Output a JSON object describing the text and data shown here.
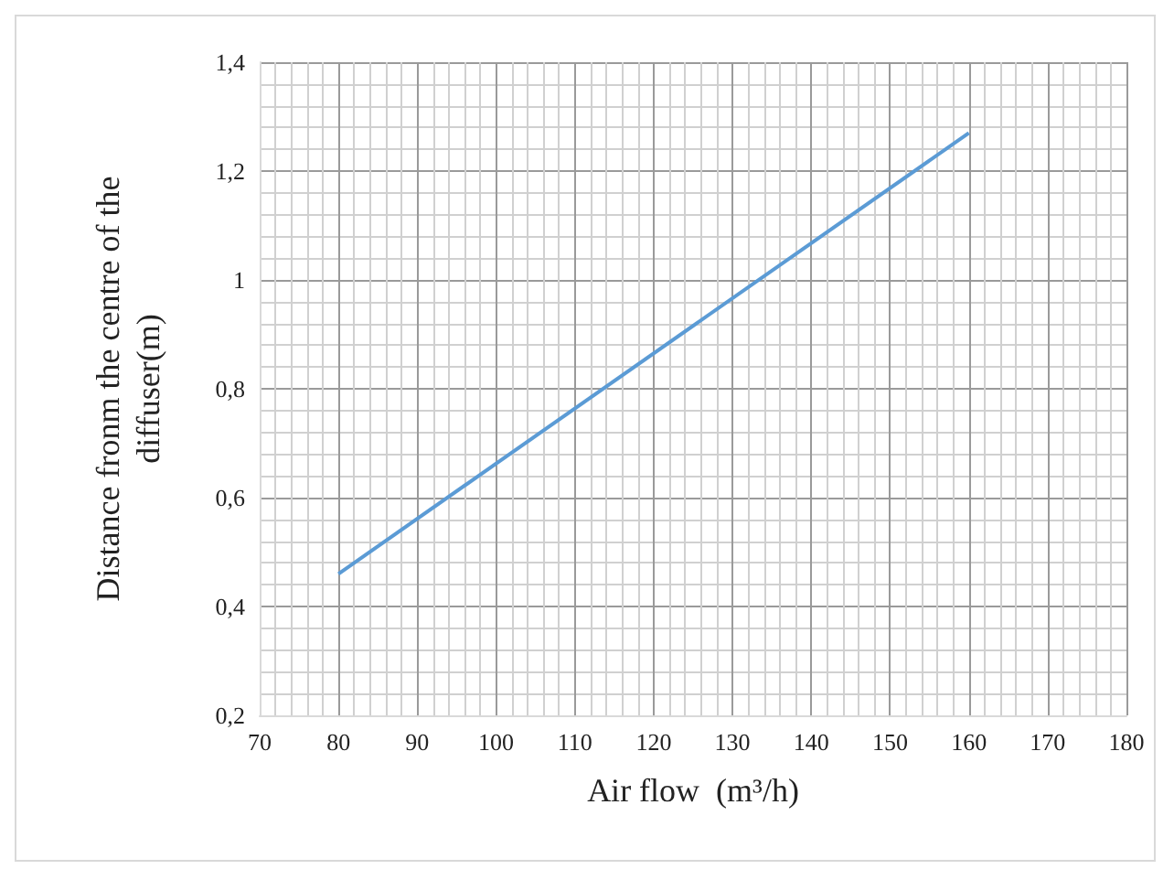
{
  "chart_data": {
    "type": "line",
    "xlabel": "Air flow  (m³/h)",
    "ylabel": "Distance fronm the centre of the diffuser(m)",
    "x": [
      80,
      160
    ],
    "series": [
      {
        "color": "#5b9bd5",
        "values": [
          0.46,
          1.27
        ]
      }
    ],
    "xlim": [
      70,
      180
    ],
    "xticks": [
      70,
      80,
      90,
      100,
      110,
      120,
      130,
      140,
      150,
      160,
      170,
      180
    ],
    "ylim": [
      0.2,
      1.4
    ],
    "yticks": [
      {
        "value": 0.2,
        "label": "0,2"
      },
      {
        "value": 0.4,
        "label": "0,4"
      },
      {
        "value": 0.6,
        "label": "0,6"
      },
      {
        "value": 0.8,
        "label": "0,8"
      },
      {
        "value": 1,
        "label": "1"
      },
      {
        "value": 1.2,
        "label": "1,2"
      },
      {
        "value": 1.4,
        "label": "1,4"
      }
    ],
    "grid": true,
    "marker": "none",
    "line_style": "solid"
  }
}
